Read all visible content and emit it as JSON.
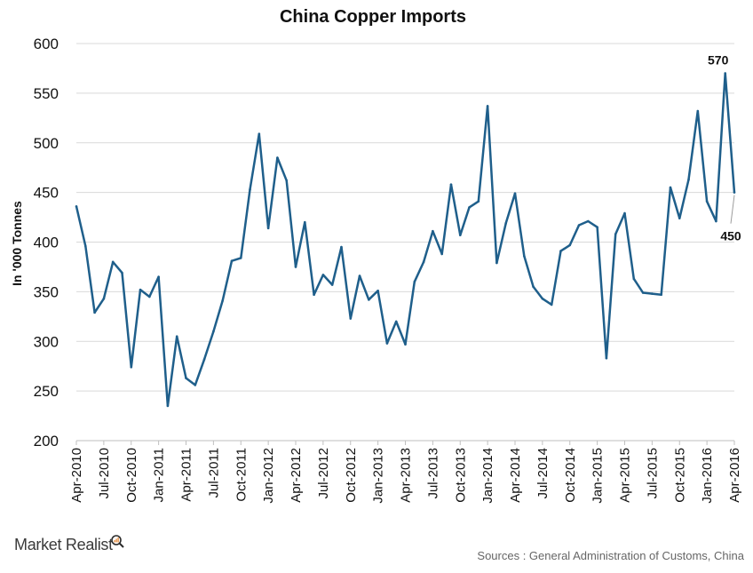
{
  "brand": {
    "name": "Market Realist",
    "icon": "magnifier-icon"
  },
  "source": "Sources : General Administration of Customs, China",
  "chart_data": {
    "type": "line",
    "title": "China Copper Imports",
    "xlabel": "",
    "ylabel": "In '000 Tonnes",
    "ylim": [
      200,
      600
    ],
    "yticks": [
      200,
      250,
      300,
      350,
      400,
      450,
      500,
      550,
      600
    ],
    "grid": true,
    "line_color": "#1f5f8b",
    "x": [
      "Apr-2010",
      "May-2010",
      "Jun-2010",
      "Jul-2010",
      "Aug-2010",
      "Sep-2010",
      "Oct-2010",
      "Nov-2010",
      "Dec-2010",
      "Jan-2011",
      "Feb-2011",
      "Mar-2011",
      "Apr-2011",
      "May-2011",
      "Jun-2011",
      "Jul-2011",
      "Aug-2011",
      "Sep-2011",
      "Oct-2011",
      "Nov-2011",
      "Dec-2011",
      "Jan-2012",
      "Feb-2012",
      "Mar-2012",
      "Apr-2012",
      "May-2012",
      "Jun-2012",
      "Jul-2012",
      "Aug-2012",
      "Sep-2012",
      "Oct-2012",
      "Nov-2012",
      "Dec-2012",
      "Jan-2013",
      "Feb-2013",
      "Mar-2013",
      "Apr-2013",
      "May-2013",
      "Jun-2013",
      "Jul-2013",
      "Aug-2013",
      "Sep-2013",
      "Oct-2013",
      "Nov-2013",
      "Dec-2013",
      "Jan-2014",
      "Feb-2014",
      "Mar-2014",
      "Apr-2014",
      "May-2014",
      "Jun-2014",
      "Jul-2014",
      "Aug-2014",
      "Sep-2014",
      "Oct-2014",
      "Nov-2014",
      "Dec-2014",
      "Jan-2015",
      "Feb-2015",
      "Mar-2015",
      "Apr-2015",
      "May-2015",
      "Jun-2015",
      "Jul-2015",
      "Aug-2015",
      "Sep-2015",
      "Oct-2015",
      "Nov-2015",
      "Dec-2015",
      "Jan-2016",
      "Feb-2016",
      "Mar-2016",
      "Apr-2016"
    ],
    "xtick_labels": [
      "Apr-2010",
      "Jul-2010",
      "Oct-2010",
      "Jan-2011",
      "Apr-2011",
      "Jul-2011",
      "Oct-2011",
      "Jan-2012",
      "Apr-2012",
      "Jul-2012",
      "Oct-2012",
      "Jan-2013",
      "Apr-2013",
      "Jul-2013",
      "Oct-2013",
      "Jan-2014",
      "Apr-2014",
      "Jul-2014",
      "Oct-2014",
      "Jan-2015",
      "Apr-2015",
      "Jul-2015",
      "Oct-2015",
      "Jan-2016",
      "Apr-2016"
    ],
    "values": [
      436,
      396,
      329,
      343,
      380,
      369,
      274,
      352,
      345,
      365,
      235,
      305,
      263,
      256,
      282,
      310,
      341,
      381,
      384,
      453,
      509,
      414,
      485,
      462,
      375,
      420,
      347,
      367,
      357,
      395,
      323,
      366,
      342,
      351,
      298,
      320,
      297,
      360,
      380,
      411,
      388,
      458,
      407,
      435,
      441,
      537,
      379,
      419,
      449,
      386,
      355,
      343,
      337,
      391,
      397,
      417,
      421,
      415,
      283,
      408,
      429,
      363,
      349,
      348,
      347,
      455,
      424,
      463,
      532,
      441,
      421,
      570,
      450
    ],
    "annotations": [
      {
        "label": "570",
        "x": "Mar-2016",
        "y": 570
      },
      {
        "label": "450",
        "x": "Apr-2016",
        "y": 450
      }
    ]
  }
}
